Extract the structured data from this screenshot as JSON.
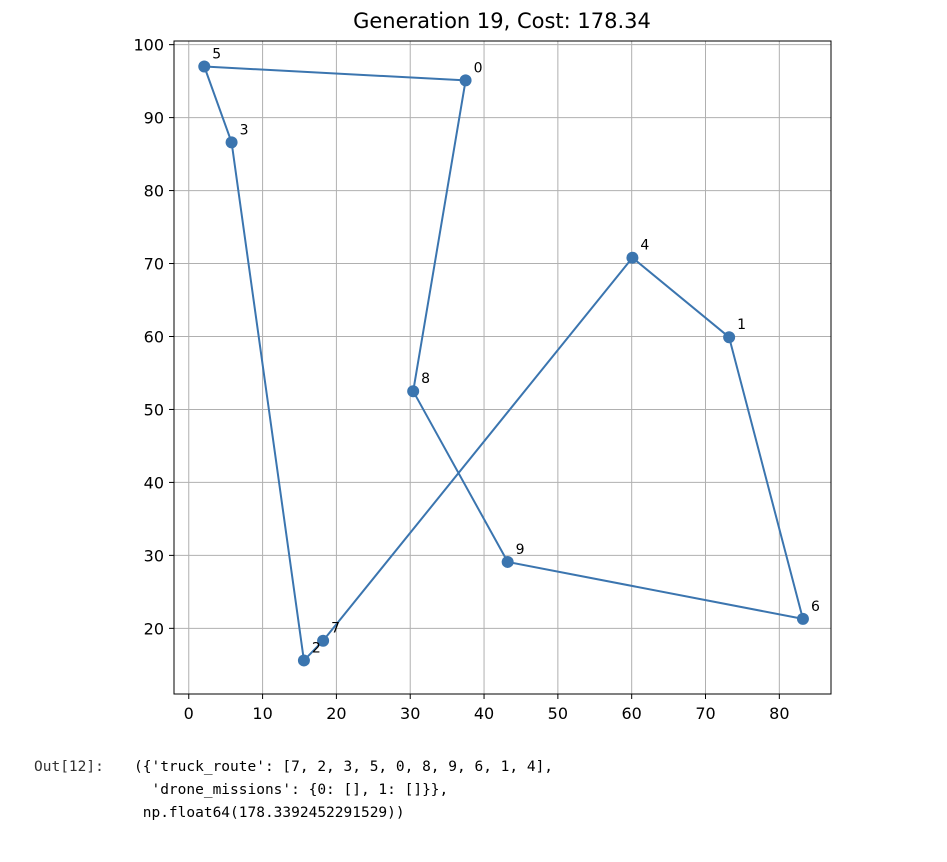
{
  "chart_data": {
    "type": "line",
    "title": "Generation 19, Cost: 178.34",
    "xlabel": "",
    "ylabel": "",
    "xlim": [
      -2,
      87
    ],
    "ylim": [
      11,
      100.5
    ],
    "x_ticks": [
      0,
      10,
      20,
      30,
      40,
      50,
      60,
      70,
      80
    ],
    "y_ticks": [
      20,
      30,
      40,
      50,
      60,
      70,
      80,
      90,
      100
    ],
    "grid": true,
    "line_color": "#3b75af",
    "points": [
      {
        "label": "0",
        "x": 37.5,
        "y": 95.1
      },
      {
        "label": "1",
        "x": 73.2,
        "y": 59.9
      },
      {
        "label": "2",
        "x": 15.6,
        "y": 15.6
      },
      {
        "label": "3",
        "x": 5.8,
        "y": 86.6
      },
      {
        "label": "4",
        "x": 60.1,
        "y": 70.8
      },
      {
        "label": "5",
        "x": 2.1,
        "y": 97.0
      },
      {
        "label": "6",
        "x": 83.2,
        "y": 21.3
      },
      {
        "label": "7",
        "x": 18.2,
        "y": 18.3
      },
      {
        "label": "8",
        "x": 30.4,
        "y": 52.5
      },
      {
        "label": "9",
        "x": 43.2,
        "y": 29.1
      }
    ],
    "route": [
      7,
      2,
      3,
      5,
      0,
      8,
      9,
      6,
      1,
      4,
      7
    ]
  },
  "output": {
    "prompt": "Out[12]:",
    "line1": "({'truck_route': [7, 2, 3, 5, 0, 8, 9, 6, 1, 4],",
    "line2": "  'drone_missions': {0: [], 1: []}},",
    "line3": " np.float64(178.3392452291529))"
  }
}
